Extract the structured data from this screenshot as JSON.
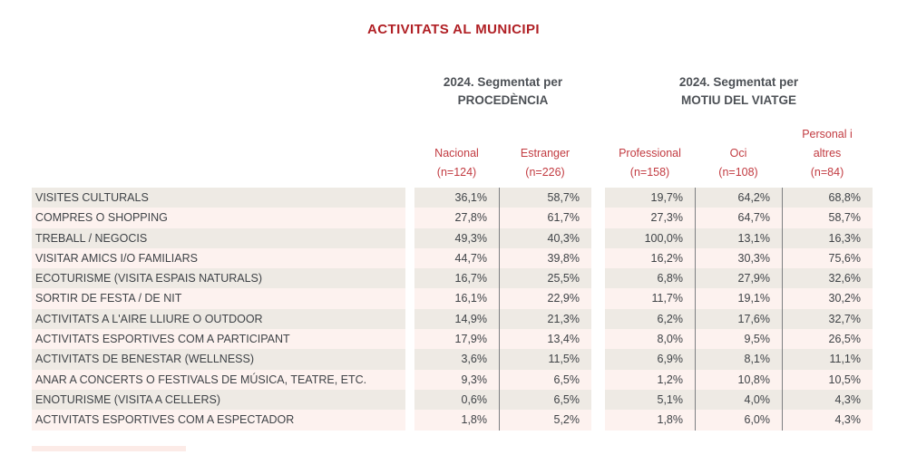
{
  "page": {
    "title": "ACTIVITATS AL MUNICIPI"
  },
  "colors": {
    "title_red": "#b01f24",
    "column_header_red": "#c23b41",
    "group_header_gray": "#4d5156",
    "body_text_gray": "#3f4347",
    "row_odd_bg": "#eeeae4",
    "row_even_bg": "#fdf2ef",
    "divider_gray": "#7d7f82"
  },
  "groups": [
    {
      "line1": "2024. Segmentat per",
      "line2": "PROCEDÈNCIA"
    },
    {
      "line1": "2024. Segmentat per",
      "line2": "MOTIU DEL VIATGE"
    }
  ],
  "columns": [
    {
      "label": "Nacional",
      "n": "(n=124)"
    },
    {
      "label": "Estranger",
      "n": "(n=226)"
    },
    {
      "label": "Professional",
      "n": "(n=158)"
    },
    {
      "label": "Oci",
      "n": "(n=108)"
    },
    {
      "label_line1": "Personal i",
      "label_line2": "altres",
      "n": "(n=84)"
    }
  ],
  "table": {
    "rows": [
      {
        "label": "VISITES CULTURALS",
        "values": [
          "36,1%",
          "58,7%",
          "19,7%",
          "64,2%",
          "68,8%"
        ]
      },
      {
        "label": "COMPRES O SHOPPING",
        "values": [
          "27,8%",
          "61,7%",
          "27,3%",
          "64,7%",
          "58,7%"
        ]
      },
      {
        "label": "TREBALL / NEGOCIS",
        "values": [
          "49,3%",
          "40,3%",
          "100,0%",
          "13,1%",
          "16,3%"
        ]
      },
      {
        "label": "VISITAR AMICS I/O FAMILIARS",
        "values": [
          "44,7%",
          "39,8%",
          "16,2%",
          "30,3%",
          "75,6%"
        ]
      },
      {
        "label": "ECOTURISME (VISITA ESPAIS NATURALS)",
        "values": [
          "16,7%",
          "25,5%",
          "6,8%",
          "27,9%",
          "32,6%"
        ]
      },
      {
        "label": "SORTIR DE FESTA / DE NIT",
        "values": [
          "16,1%",
          "22,9%",
          "11,7%",
          "19,1%",
          "30,2%"
        ]
      },
      {
        "label": "ACTIVITATS A L'AIRE LLIURE O OUTDOOR",
        "values": [
          "14,9%",
          "21,3%",
          "6,2%",
          "17,6%",
          "32,7%"
        ]
      },
      {
        "label": "ACTIVITATS ESPORTIVES COM A PARTICIPANT",
        "values": [
          "17,9%",
          "13,4%",
          "8,0%",
          "9,5%",
          "26,5%"
        ]
      },
      {
        "label": "ACTIVITATS DE BENESTAR (WELLNESS)",
        "values": [
          "3,6%",
          "11,5%",
          "6,9%",
          "8,1%",
          "11,1%"
        ]
      },
      {
        "label": "ANAR A CONCERTS O FESTIVALS DE MÚSICA, TEATRE, ETC.",
        "values": [
          "9,3%",
          "6,5%",
          "1,2%",
          "10,8%",
          "10,5%"
        ]
      },
      {
        "label": "ENOTURISME (VISITA A CELLERS)",
        "values": [
          "0,6%",
          "6,5%",
          "5,1%",
          "4,0%",
          "4,3%"
        ]
      },
      {
        "label": "ACTIVITATS ESPORTIVES COM A ESPECTADOR",
        "values": [
          "1,8%",
          "5,2%",
          "1,8%",
          "6,0%",
          "4,3%"
        ]
      }
    ]
  },
  "chart_data": {
    "type": "table",
    "title": "ACTIVITATS AL MUNICIPI",
    "column_groups": [
      {
        "title": "2024. Segmentat per PROCEDÈNCIA",
        "columns": [
          "Nacional (n=124)",
          "Estranger (n=226)"
        ]
      },
      {
        "title": "2024. Segmentat per MOTIU DEL VIATGE",
        "columns": [
          "Professional (n=158)",
          "Oci (n=108)",
          "Personal i altres (n=84)"
        ]
      }
    ],
    "columns": [
      "Nacional (n=124)",
      "Estranger (n=226)",
      "Professional (n=158)",
      "Oci (n=108)",
      "Personal i altres (n=84)"
    ],
    "unit": "percent",
    "rows": [
      {
        "activity": "VISITES CULTURALS",
        "values_pct": [
          36.1,
          58.7,
          19.7,
          64.2,
          68.8
        ]
      },
      {
        "activity": "COMPRES O SHOPPING",
        "values_pct": [
          27.8,
          61.7,
          27.3,
          64.7,
          58.7
        ]
      },
      {
        "activity": "TREBALL / NEGOCIS",
        "values_pct": [
          49.3,
          40.3,
          100.0,
          13.1,
          16.3
        ]
      },
      {
        "activity": "VISITAR AMICS I/O FAMILIARS",
        "values_pct": [
          44.7,
          39.8,
          16.2,
          30.3,
          75.6
        ]
      },
      {
        "activity": "ECOTURISME (VISITA ESPAIS NATURALS)",
        "values_pct": [
          16.7,
          25.5,
          6.8,
          27.9,
          32.6
        ]
      },
      {
        "activity": "SORTIR DE FESTA / DE NIT",
        "values_pct": [
          16.1,
          22.9,
          11.7,
          19.1,
          30.2
        ]
      },
      {
        "activity": "ACTIVITATS A L'AIRE LLIURE O OUTDOOR",
        "values_pct": [
          14.9,
          21.3,
          6.2,
          17.6,
          32.7
        ]
      },
      {
        "activity": "ACTIVITATS ESPORTIVES COM A PARTICIPANT",
        "values_pct": [
          17.9,
          13.4,
          8.0,
          9.5,
          26.5
        ]
      },
      {
        "activity": "ACTIVITATS DE BENESTAR (WELLNESS)",
        "values_pct": [
          3.6,
          11.5,
          6.9,
          8.1,
          11.1
        ]
      },
      {
        "activity": "ANAR A CONCERTS O FESTIVALS DE MÚSICA, TEATRE, ETC.",
        "values_pct": [
          9.3,
          6.5,
          1.2,
          10.8,
          10.5
        ]
      },
      {
        "activity": "ENOTURISME (VISITA A CELLERS)",
        "values_pct": [
          0.6,
          6.5,
          5.1,
          4.0,
          4.3
        ]
      },
      {
        "activity": "ACTIVITATS ESPORTIVES COM A ESPECTADOR",
        "values_pct": [
          1.8,
          5.2,
          1.8,
          6.0,
          4.3
        ]
      }
    ]
  }
}
